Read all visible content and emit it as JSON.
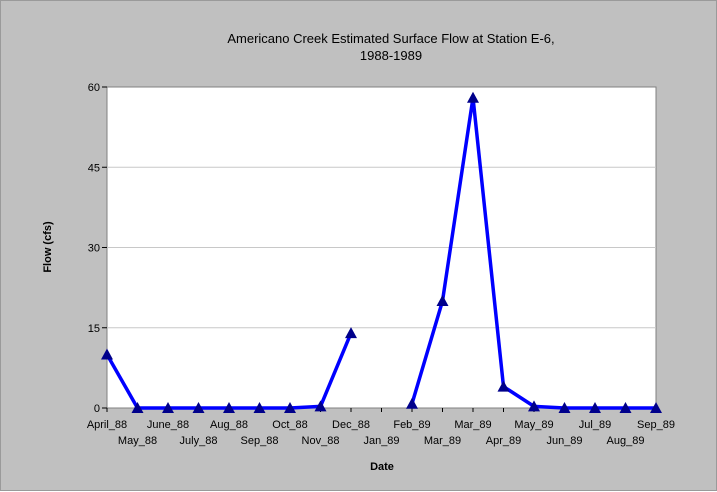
{
  "colors": {
    "frame_bg": "#c0c0c0",
    "plot_bg": "#ffffff",
    "gridline": "#c8c8c8",
    "series_line": "#0000ff",
    "marker": "#00008b"
  },
  "chart_data": {
    "type": "line",
    "title_line1": "Americano Creek Estimated Surface Flow at Station E-6,",
    "title_line2": "1988-1989",
    "xlabel": "Date",
    "ylabel": "Flow (cfs)",
    "ylim": [
      0,
      60
    ],
    "yticks": [
      "0",
      "15",
      "30",
      "45",
      "60"
    ],
    "grid": true,
    "categories": [
      "April_88",
      "May_88",
      "June_88",
      "July_88",
      "Aug_88",
      "Sep_88",
      "Oct_88",
      "Nov_88",
      "Dec_88",
      "Jan_89",
      "Feb_89",
      "Mar_89",
      "Mar_89",
      "Apr_89",
      "May_89",
      "Jun_89",
      "Jul_89",
      "Aug_89",
      "Sep_89"
    ],
    "series": [
      {
        "values": [
          10,
          0,
          0,
          0,
          0,
          0,
          0,
          0.3,
          14,
          null,
          0.8,
          20,
          58,
          4,
          0.3,
          0,
          0,
          0,
          0
        ]
      }
    ]
  }
}
